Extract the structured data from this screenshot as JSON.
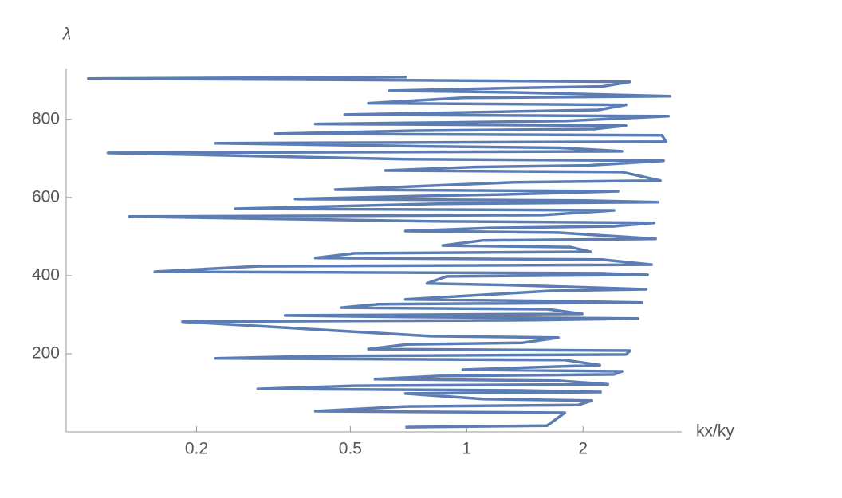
{
  "chart_data": {
    "type": "line",
    "xlabel": "kx/ky",
    "ylabel": "λ",
    "xscale": "log",
    "color": "#5b7db3",
    "xlim": [
      0.092,
      3.6
    ],
    "ylim": [
      0,
      930
    ],
    "xticks": [
      0.2,
      0.5,
      1,
      2
    ],
    "yticks": [
      200,
      400,
      600,
      800
    ],
    "x": [
      0.694,
      1.615,
      1.794,
      0.406,
      0.7,
      1.944,
      2.108,
      1.1,
      0.694,
      2.22,
      1.394,
      0.288,
      0.514,
      2.318,
      1.726,
      0.579,
      0.847,
      2.406,
      2.523,
      0.977,
      1.686,
      2.21,
      1.794,
      0.224,
      0.406,
      2.583,
      2.647,
      0.557,
      0.7,
      1.394,
      1.726,
      0.808,
      0.184,
      1.497,
      2.774,
      0.7,
      0.339,
      1.99,
      1.615,
      0.474,
      0.593,
      2.843,
      1.615,
      0.694,
      1.646,
      2.91,
      1.268,
      0.789,
      0.888,
      2.938,
      2.22,
      0.156,
      0.288,
      3.007,
      2.243,
      0.406,
      0.514,
      2.09,
      1.854,
      0.867,
      1.1,
      3.08,
      1.726,
      0.694,
      1.153,
      2.384,
      3.05,
      0.808,
      0.134,
      1.57,
      2.406,
      0.252,
      0.847,
      3.126,
      1.99,
      0.36,
      0.808,
      1.286,
      2.464,
      0.457,
      1.33,
      3.17,
      2.523,
      0.616,
      1.05,
      2.066,
      3.23,
      0.694,
      0.118,
      2.523,
      1.743,
      0.763,
      0.224,
      3.275,
      3.2,
      0.32,
      0.734,
      2.138,
      2.583,
      0.406,
      0.888,
      1.81,
      3.325,
      0.484,
      1.33,
      2.19,
      2.583,
      0.557,
      0.977,
      3.355,
      1.298,
      0.631,
      1.298,
      2.243,
      2.647,
      0.7,
      0.105,
      0.7
    ],
    "values": [
      12,
      16,
      49,
      53,
      65,
      69,
      80,
      84,
      98,
      102,
      106,
      110,
      118,
      122,
      131,
      135,
      143,
      147,
      155,
      159,
      167,
      171,
      184,
      188,
      194,
      198,
      208,
      212,
      224,
      228,
      241,
      245,
      282,
      286,
      290,
      294,
      298,
      302,
      314,
      318,
      327,
      331,
      335,
      339,
      361,
      365,
      376,
      380,
      398,
      402,
      406,
      410,
      424,
      428,
      441,
      445,
      457,
      461,
      473,
      477,
      490,
      494,
      510,
      514,
      522,
      526,
      535,
      539,
      551,
      555,
      567,
      571,
      584,
      588,
      592,
      596,
      604,
      608,
      616,
      620,
      639,
      643,
      665,
      669,
      678,
      682,
      694,
      698,
      714,
      718,
      727,
      731,
      739,
      743,
      759,
      763,
      771,
      775,
      784,
      788,
      792,
      796,
      808,
      812,
      820,
      824,
      837,
      841,
      855,
      859,
      869,
      873,
      880,
      884,
      896,
      900,
      904,
      908
    ]
  }
}
